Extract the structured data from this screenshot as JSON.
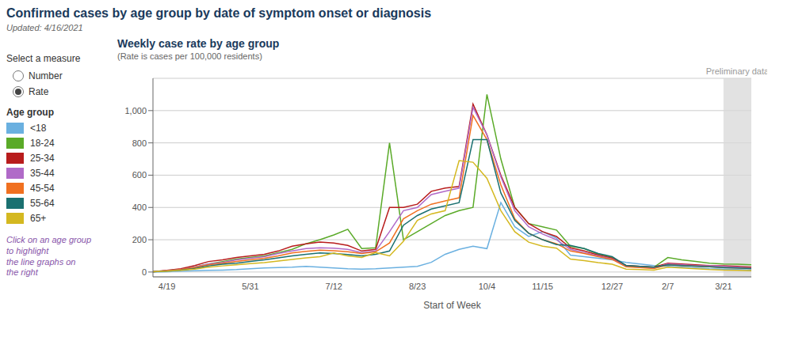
{
  "chart_data": {
    "type": "line",
    "title": "Confirmed cases by age group by date of symptom onset or diagnosis",
    "subtitle": "Updated: 4/16/2021",
    "x_label": "Start of Week",
    "annotations": [
      "Weekly case rate by age group",
      "(Rate is cases per 100,000 residents)",
      "Select a measure",
      "Number",
      "Rate",
      "Age group",
      "Click on an age group\nto highlight\nthe line graphs on\nthe right",
      {
        "text": "Preliminary data",
        "x_start": 41,
        "x_end": 43
      }
    ],
    "categories": [
      null,
      "4/19",
      null,
      null,
      null,
      null,
      null,
      "5/31",
      null,
      null,
      null,
      null,
      null,
      "7/12",
      null,
      null,
      null,
      null,
      null,
      "8/23",
      null,
      null,
      null,
      null,
      "10/4",
      null,
      null,
      null,
      "11/15",
      null,
      null,
      null,
      null,
      "12/27",
      null,
      null,
      null,
      "2/7",
      null,
      null,
      null,
      "3/21",
      null,
      null
    ],
    "series": [
      {
        "name": "<18",
        "color": "#6ab0e0",
        "values": [
          0,
          2,
          5,
          8,
          10,
          12,
          15,
          20,
          25,
          28,
          30,
          35,
          30,
          25,
          20,
          18,
          20,
          25,
          30,
          35,
          60,
          110,
          140,
          160,
          145,
          430,
          280,
          220,
          250,
          210,
          105,
          95,
          85,
          75,
          60,
          50,
          40,
          35,
          30,
          25,
          20,
          18,
          15,
          12
        ]
      },
      {
        "name": "18-24",
        "color": "#5aaa28",
        "values": [
          2,
          8,
          15,
          30,
          50,
          65,
          80,
          90,
          100,
          120,
          140,
          175,
          200,
          230,
          265,
          145,
          150,
          800,
          200,
          250,
          300,
          350,
          380,
          400,
          1100,
          700,
          400,
          300,
          280,
          260,
          160,
          145,
          110,
          90,
          40,
          35,
          30,
          90,
          75,
          65,
          55,
          50,
          48,
          45
        ]
      },
      {
        "name": "25-34",
        "color": "#b81c1c",
        "values": [
          2,
          10,
          20,
          40,
          65,
          75,
          90,
          100,
          110,
          130,
          160,
          175,
          185,
          180,
          165,
          130,
          140,
          400,
          400,
          420,
          500,
          520,
          530,
          1040,
          850,
          600,
          400,
          300,
          250,
          220,
          150,
          130,
          105,
          85,
          40,
          35,
          30,
          55,
          50,
          45,
          40,
          38,
          35,
          30
        ]
      },
      {
        "name": "35-44",
        "color": "#b06ac8",
        "values": [
          2,
          8,
          15,
          30,
          50,
          60,
          75,
          85,
          95,
          115,
          130,
          145,
          150,
          148,
          140,
          120,
          130,
          250,
          380,
          400,
          480,
          500,
          520,
          1020,
          850,
          590,
          380,
          280,
          235,
          200,
          140,
          120,
          100,
          80,
          35,
          30,
          25,
          50,
          45,
          40,
          38,
          35,
          30,
          25
        ]
      },
      {
        "name": "45-54",
        "color": "#f07020",
        "values": [
          2,
          8,
          15,
          28,
          45,
          55,
          65,
          75,
          85,
          100,
          118,
          128,
          135,
          132,
          125,
          115,
          125,
          180,
          330,
          380,
          420,
          440,
          460,
          970,
          820,
          540,
          330,
          240,
          200,
          175,
          130,
          115,
          95,
          78,
          32,
          28,
          22,
          45,
          40,
          36,
          32,
          28,
          25,
          22
        ]
      },
      {
        "name": "55-64",
        "color": "#1a7070",
        "values": [
          2,
          6,
          12,
          22,
          38,
          48,
          55,
          65,
          75,
          88,
          100,
          110,
          118,
          115,
          108,
          100,
          110,
          130,
          290,
          350,
          390,
          410,
          430,
          820,
          820,
          490,
          320,
          240,
          200,
          170,
          165,
          145,
          115,
          95,
          40,
          35,
          30,
          45,
          40,
          36,
          32,
          28,
          25,
          22
        ]
      },
      {
        "name": "65+",
        "color": "#d4b820",
        "values": [
          2,
          5,
          10,
          18,
          30,
          38,
          45,
          52,
          58,
          68,
          78,
          88,
          95,
          118,
          100,
          90,
          120,
          100,
          190,
          320,
          360,
          380,
          690,
          680,
          580,
          380,
          250,
          185,
          160,
          148,
          80,
          70,
          58,
          48,
          18,
          15,
          12,
          30,
          25,
          20,
          15,
          12,
          10,
          8
        ]
      }
    ],
    "ylim": [
      -30,
      1200
    ],
    "yticks": [
      0,
      200,
      400,
      600,
      800,
      {
        "value": 1000,
        "label": "1,000"
      }
    ],
    "grid": true,
    "legend": "left"
  }
}
